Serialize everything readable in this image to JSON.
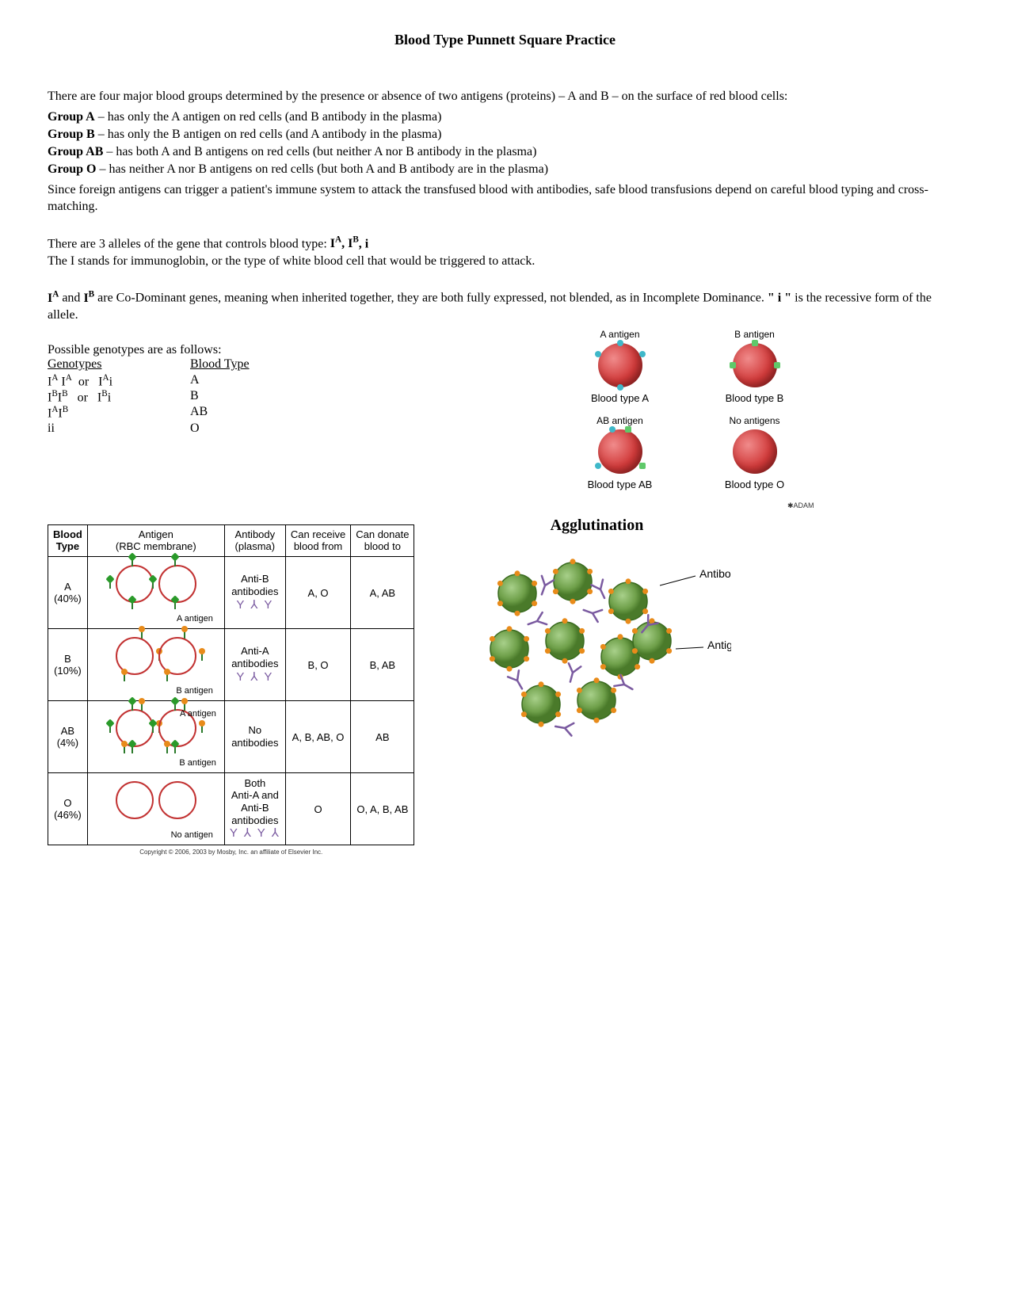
{
  "title": "Blood Type Punnett Square Practice",
  "intro1": "There are four major blood groups determined by the presence or absence of two antigens (proteins) – A and B – on the surface of red blood cells:",
  "groups": [
    {
      "name": "Group A",
      "desc": " – has only the A antigen on red cells (and B antibody in the plasma)"
    },
    {
      "name": "Group B",
      "desc": " – has only the B antigen on red cells (and A antibody in the plasma)"
    },
    {
      "name": "Group AB",
      "desc": " – has both A and B antigens on red cells (but neither A nor B antibody in the plasma)"
    },
    {
      "name": "Group O",
      "desc": " – has neither A nor B antigens on red cells (but both A and B antibody are in the plasma)"
    }
  ],
  "transfusion": "Since foreign antigens can trigger a patient's immune system to attack the transfused blood with antibodies, safe blood transfusions depend on careful blood typing and cross-matching.",
  "alleles_pre": "There are 3 alleles of the gene that controls blood type:  ",
  "alleles_list": "I",
  "alleles_post": ",  i",
  "alleles_line2": "The I stands for immunoglobin, or the type of white blood cell that would be triggered to attack.",
  "codom_pre": "I",
  "codom_mid": " and ",
  "codom_post": " are Co-Dominant genes, meaning when inherited together, they are both fully expressed, not blended, as in Incomplete Dominance.  ",
  "codom_i": "\" i \"",
  "codom_end": " is the recessive form of the allele.",
  "geno_heading": "Possible genotypes are as follows:",
  "geno_col1": "Genotypes",
  "geno_col2": "Blood Type",
  "genotype_rows": [
    {
      "g": "IA IA  or   IAi",
      "b": "A"
    },
    {
      "g": "IBIB   or   IBi",
      "b": "B"
    },
    {
      "g": "IAIB",
      "b": "AB"
    },
    {
      "g": "ii",
      "b": "O"
    }
  ],
  "diagram": {
    "a_top": "A antigen",
    "b_top": "B antigen",
    "a_bot": "Blood type A",
    "b_bot": "Blood type B",
    "ab_top": "AB antigen",
    "o_top": "No antigens",
    "ab_bot": "Blood type AB",
    "o_bot": "Blood type O",
    "adam": "ADAM",
    "cell_color": "#d13a3a",
    "a_dot_color": "#3fb8c9",
    "b_dot_color": "#3fb8c9"
  },
  "table": {
    "headers": [
      "Blood\nType",
      "Antigen\n(RBC membrane)",
      "Antibody\n(plasma)",
      "Can receive\nblood from",
      "Can donate\nblood to"
    ],
    "rows": [
      {
        "type": "A",
        "pct": "(40%)",
        "antigen_label": "A antigen",
        "antibody": "Anti-B\nantibodies",
        "receive": "A, O",
        "donate": "A, AB",
        "has_a": true,
        "has_b": false
      },
      {
        "type": "B",
        "pct": "(10%)",
        "antigen_label": "B antigen",
        "antibody": "Anti-A\nantibodies",
        "receive": "B, O",
        "donate": "B, AB",
        "has_a": false,
        "has_b": true
      },
      {
        "type": "AB",
        "pct": "(4%)",
        "antigen_label_a": "A antigen",
        "antigen_label_b": "B antigen",
        "antibody": "No\nantibodies",
        "receive": "A, B, AB, O",
        "donate": "AB",
        "has_a": true,
        "has_b": true
      },
      {
        "type": "O",
        "pct": "(46%)",
        "antigen_label": "No antigen",
        "antibody": "Both\nAnti-A and\nAnti-B\nantibodies",
        "receive": "O",
        "donate": "O, A, B, AB",
        "has_a": false,
        "has_b": false
      }
    ],
    "copyright": "Copyright © 2006, 2003 by Mosby, Inc. an affiliate of Elsevier Inc."
  },
  "agglutination": {
    "title": "Agglutination",
    "antibody_label": "Antibody",
    "antigen_label": "Antigen",
    "cell_color": "#6fa04a",
    "cell_stroke": "#3a6b1f",
    "antibody_color": "#7a5aa0",
    "antigen_dot": "#e88b1a"
  }
}
